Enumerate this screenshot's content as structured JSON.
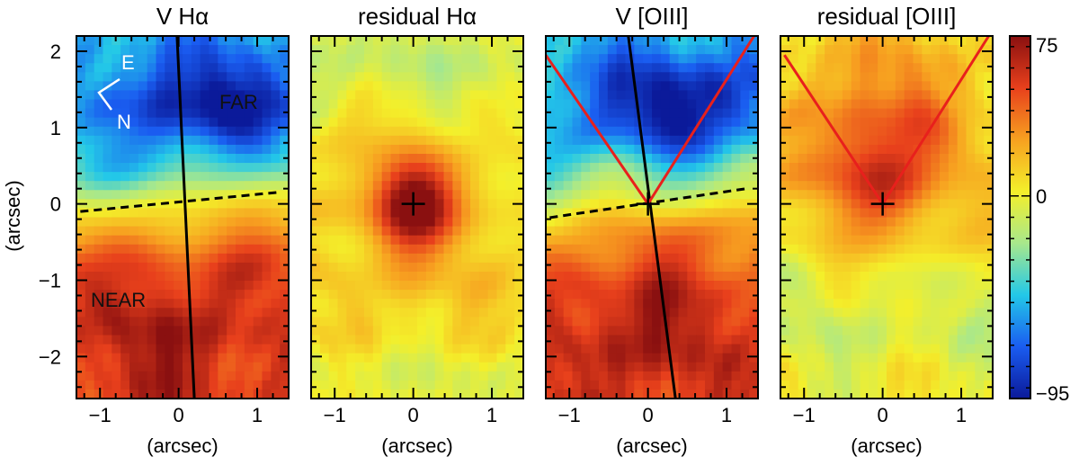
{
  "chart_data": {
    "type": "heatmap",
    "figure_kind": "velocity maps (4 panels)",
    "x_axis": {
      "label": "(arcsec)",
      "range": [
        -1.3,
        1.4
      ],
      "ticks": [
        -1,
        0,
        1
      ],
      "tick_labels": [
        "−1",
        "0",
        "1"
      ]
    },
    "y_axis": {
      "label": "(arcsec)",
      "range": [
        -2.55,
        2.2
      ],
      "ticks": [
        2,
        1,
        0,
        -1,
        -2
      ],
      "tick_labels": [
        "2",
        "1",
        "0",
        "−1",
        "−2"
      ]
    },
    "colorbar": {
      "min": -95,
      "max": 75,
      "tick_values": [
        75,
        0,
        -95
      ],
      "tick_labels": [
        "75",
        "0",
        "−95"
      ],
      "colors": [
        "#0b1a9a",
        "#1a5cf0",
        "#23c8e8",
        "#a8e88c",
        "#f4ef2a",
        "#f7a020",
        "#e8401c",
        "#8a1010"
      ]
    },
    "panels": [
      {
        "title": "V Hα",
        "map": "velocity",
        "map_description_values": {
          "far_side_peak": -95,
          "near_side_peak": 75
        },
        "lines": [
          {
            "style": "solid",
            "color": "#000000",
            "from": [
              -0.02,
              2.2
            ],
            "to": [
              0.2,
              -2.55
            ]
          },
          {
            "style": "dashed",
            "color": "#000000",
            "from": [
              -1.25,
              -0.1
            ],
            "to": [
              1.25,
              0.15
            ]
          }
        ],
        "annotations": [
          {
            "text": "E",
            "color": "white"
          },
          {
            "text": "N",
            "color": "white"
          },
          {
            "text": "FAR",
            "color": "black"
          },
          {
            "text": "NEAR",
            "color": "black"
          }
        ]
      },
      {
        "title": "residual Hα",
        "map": "residual",
        "center_marker": "+"
      },
      {
        "title": "V [OIII]",
        "map": "velocity",
        "lines": [
          {
            "style": "solid",
            "color": "#000000",
            "from": [
              -0.25,
              2.2
            ],
            "to": [
              0.35,
              -2.55
            ]
          },
          {
            "style": "dashed",
            "color": "#000000",
            "from": [
              -1.25,
              -0.18
            ],
            "to": [
              1.25,
              0.2
            ]
          },
          {
            "style": "solid",
            "color": "#e8201c",
            "from": [
              0,
              0
            ],
            "to": [
              -1.3,
              1.95
            ]
          },
          {
            "style": "solid",
            "color": "#e8201c",
            "from": [
              0,
              0
            ],
            "to": [
              1.35,
              2.2
            ]
          }
        ],
        "center_marker": "+"
      },
      {
        "title": "residual [OIII]",
        "map": "residual_oiii",
        "lines": [
          {
            "style": "solid",
            "color": "#e8201c",
            "from": [
              0,
              0
            ],
            "to": [
              -1.25,
              1.95
            ]
          },
          {
            "style": "solid",
            "color": "#e8201c",
            "from": [
              0,
              0
            ],
            "to": [
              1.35,
              2.2
            ]
          }
        ],
        "center_marker": "+"
      }
    ]
  }
}
